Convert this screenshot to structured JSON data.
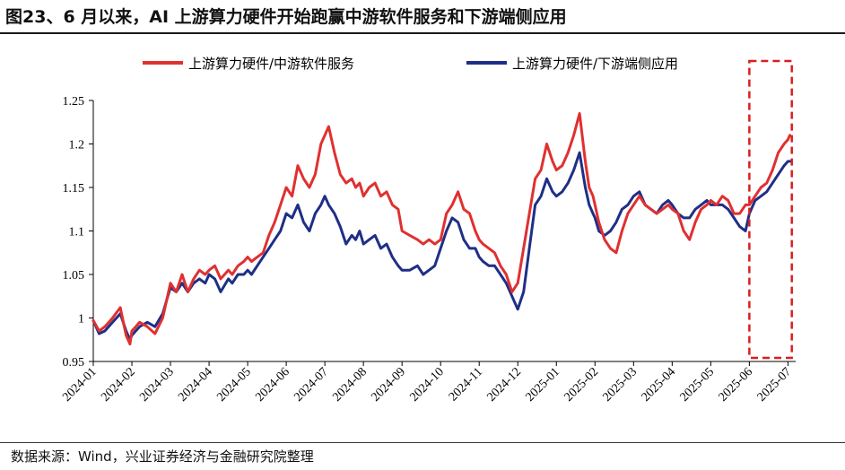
{
  "header": {
    "title": "图23、6 月以来，AI 上游算力硬件开始跑赢中游软件服务和下游端侧应用"
  },
  "footer": {
    "source": "数据来源：Wind，兴业证券经济与金融研究院整理"
  },
  "colors": {
    "red": "#e03030",
    "blue": "#1f2f86",
    "highlight": "#d62020",
    "axis": "#000000"
  },
  "chart_data": {
    "type": "line",
    "title": "6 月以来，AI 上游算力硬件开始跑赢中游软件服务和下游端侧应用",
    "xlabel": "",
    "ylabel": "",
    "ylim": [
      0.95,
      1.25
    ],
    "yticks": [
      0.95,
      1,
      1.05,
      1.1,
      1.15,
      1.2,
      1.25
    ],
    "ytick_labels": [
      "0.95",
      "1",
      "1.05",
      "1.1",
      "1.15",
      "1.2",
      "1.25"
    ],
    "xlim": [
      0,
      18.2
    ],
    "xticks": [
      0,
      1,
      2,
      3,
      4,
      5,
      6,
      7,
      8,
      9,
      10,
      11,
      12,
      13,
      14,
      15,
      16,
      17,
      18
    ],
    "xtick_labels": [
      "2024-01",
      "2024-02",
      "2024-03",
      "2024-04",
      "2024-05",
      "2024-06",
      "2024-07",
      "2024-08",
      "2024-09",
      "2024-10",
      "2024-11",
      "2024-12",
      "2025-01",
      "2025-02",
      "2025-03",
      "2025-04",
      "2025-05",
      "2025-06",
      "2025-07"
    ],
    "legend_position": "top",
    "highlight": {
      "x_from": 17.0,
      "x_to": 18.1,
      "style": "dashed-red-box",
      "label": ""
    },
    "series": [
      {
        "name": "上游算力硬件/中游软件服务",
        "color": "#e03030",
        "x": [
          0,
          0.15,
          0.3,
          0.5,
          0.7,
          0.85,
          0.95,
          1.0,
          1.1,
          1.2,
          1.4,
          1.6,
          1.8,
          1.9,
          2.0,
          2.15,
          2.3,
          2.45,
          2.6,
          2.75,
          2.9,
          3.0,
          3.15,
          3.3,
          3.5,
          3.6,
          3.75,
          3.9,
          4.0,
          4.1,
          4.25,
          4.4,
          4.55,
          4.7,
          4.85,
          5.0,
          5.15,
          5.3,
          5.45,
          5.6,
          5.75,
          5.9,
          6.0,
          6.1,
          6.25,
          6.4,
          6.55,
          6.7,
          6.8,
          6.9,
          7.0,
          7.15,
          7.3,
          7.45,
          7.6,
          7.75,
          7.9,
          8.0,
          8.2,
          8.4,
          8.55,
          8.7,
          8.85,
          9.0,
          9.15,
          9.3,
          9.45,
          9.6,
          9.75,
          9.9,
          10.0,
          10.1,
          10.25,
          10.4,
          10.55,
          10.7,
          10.85,
          11.0,
          11.15,
          11.3,
          11.45,
          11.6,
          11.75,
          11.9,
          12.0,
          12.15,
          12.3,
          12.45,
          12.6,
          12.75,
          12.85,
          12.95,
          13.0,
          13.1,
          13.25,
          13.4,
          13.55,
          13.7,
          13.85,
          14.0,
          14.15,
          14.3,
          14.45,
          14.6,
          14.75,
          14.9,
          15.0,
          15.15,
          15.3,
          15.45,
          15.6,
          15.75,
          15.9,
          16.0,
          16.15,
          16.3,
          16.45,
          16.6,
          16.75,
          16.9,
          17.0,
          17.15,
          17.3,
          17.45,
          17.6,
          17.75,
          17.9,
          18.0,
          18.05
        ],
        "values": [
          0.997,
          0.985,
          0.99,
          1.0,
          1.012,
          0.98,
          0.97,
          0.985,
          0.99,
          0.995,
          0.99,
          0.982,
          1.0,
          1.02,
          1.04,
          1.03,
          1.05,
          1.03,
          1.045,
          1.055,
          1.05,
          1.055,
          1.06,
          1.045,
          1.055,
          1.05,
          1.06,
          1.065,
          1.07,
          1.065,
          1.07,
          1.075,
          1.095,
          1.11,
          1.13,
          1.15,
          1.14,
          1.175,
          1.16,
          1.15,
          1.165,
          1.2,
          1.21,
          1.22,
          1.19,
          1.165,
          1.155,
          1.16,
          1.15,
          1.155,
          1.14,
          1.15,
          1.155,
          1.14,
          1.145,
          1.13,
          1.125,
          1.1,
          1.095,
          1.09,
          1.085,
          1.09,
          1.085,
          1.09,
          1.12,
          1.13,
          1.145,
          1.125,
          1.12,
          1.1,
          1.09,
          1.085,
          1.08,
          1.075,
          1.06,
          1.05,
          1.03,
          1.04,
          1.08,
          1.12,
          1.16,
          1.17,
          1.2,
          1.18,
          1.17,
          1.175,
          1.19,
          1.21,
          1.235,
          1.18,
          1.15,
          1.14,
          1.13,
          1.11,
          1.09,
          1.08,
          1.075,
          1.1,
          1.12,
          1.13,
          1.14,
          1.13,
          1.125,
          1.12,
          1.125,
          1.13,
          1.125,
          1.12,
          1.1,
          1.09,
          1.11,
          1.125,
          1.13,
          1.135,
          1.13,
          1.14,
          1.135,
          1.12,
          1.12,
          1.13,
          1.13,
          1.14,
          1.15,
          1.155,
          1.17,
          1.19,
          1.2,
          1.205,
          1.21
        ]
      },
      {
        "name": "上游算力硬件/下游端侧应用",
        "color": "#1f2f86",
        "x": [
          0,
          0.15,
          0.3,
          0.5,
          0.7,
          0.85,
          0.95,
          1.0,
          1.1,
          1.2,
          1.4,
          1.6,
          1.8,
          1.9,
          2.0,
          2.15,
          2.3,
          2.45,
          2.6,
          2.75,
          2.9,
          3.0,
          3.15,
          3.3,
          3.5,
          3.6,
          3.75,
          3.9,
          4.0,
          4.1,
          4.25,
          4.4,
          4.55,
          4.7,
          4.85,
          5.0,
          5.15,
          5.3,
          5.45,
          5.6,
          5.75,
          5.9,
          6.0,
          6.1,
          6.25,
          6.4,
          6.55,
          6.7,
          6.8,
          6.9,
          7.0,
          7.15,
          7.3,
          7.45,
          7.6,
          7.75,
          7.9,
          8.0,
          8.2,
          8.4,
          8.55,
          8.7,
          8.85,
          9.0,
          9.15,
          9.3,
          9.45,
          9.6,
          9.75,
          9.9,
          10.0,
          10.1,
          10.25,
          10.4,
          10.55,
          10.7,
          10.85,
          11.0,
          11.15,
          11.3,
          11.45,
          11.6,
          11.75,
          11.9,
          12.0,
          12.15,
          12.3,
          12.45,
          12.6,
          12.75,
          12.85,
          12.95,
          13.0,
          13.1,
          13.25,
          13.4,
          13.55,
          13.7,
          13.85,
          14.0,
          14.15,
          14.3,
          14.45,
          14.6,
          14.75,
          14.9,
          15.0,
          15.15,
          15.3,
          15.45,
          15.6,
          15.75,
          15.9,
          16.0,
          16.15,
          16.3,
          16.45,
          16.6,
          16.75,
          16.9,
          17.0,
          17.15,
          17.3,
          17.45,
          17.6,
          17.75,
          17.9,
          18.0,
          18.05
        ],
        "values": [
          0.997,
          0.982,
          0.985,
          0.995,
          1.005,
          0.985,
          0.975,
          0.98,
          0.985,
          0.99,
          0.995,
          0.99,
          1.005,
          1.02,
          1.035,
          1.03,
          1.04,
          1.03,
          1.04,
          1.045,
          1.04,
          1.05,
          1.045,
          1.03,
          1.045,
          1.04,
          1.05,
          1.05,
          1.055,
          1.05,
          1.06,
          1.07,
          1.08,
          1.09,
          1.1,
          1.12,
          1.115,
          1.13,
          1.11,
          1.1,
          1.12,
          1.13,
          1.14,
          1.13,
          1.12,
          1.105,
          1.085,
          1.095,
          1.09,
          1.1,
          1.085,
          1.09,
          1.095,
          1.08,
          1.085,
          1.07,
          1.06,
          1.055,
          1.055,
          1.06,
          1.05,
          1.055,
          1.06,
          1.08,
          1.1,
          1.115,
          1.11,
          1.09,
          1.08,
          1.08,
          1.07,
          1.065,
          1.06,
          1.06,
          1.05,
          1.04,
          1.025,
          1.01,
          1.03,
          1.08,
          1.13,
          1.14,
          1.16,
          1.145,
          1.14,
          1.145,
          1.155,
          1.17,
          1.19,
          1.15,
          1.13,
          1.12,
          1.115,
          1.1,
          1.095,
          1.1,
          1.11,
          1.125,
          1.13,
          1.14,
          1.145,
          1.13,
          1.125,
          1.12,
          1.13,
          1.135,
          1.13,
          1.12,
          1.115,
          1.115,
          1.125,
          1.13,
          1.135,
          1.13,
          1.13,
          1.13,
          1.125,
          1.115,
          1.105,
          1.1,
          1.12,
          1.135,
          1.14,
          1.145,
          1.155,
          1.165,
          1.175,
          1.18,
          1.18
        ]
      }
    ]
  }
}
